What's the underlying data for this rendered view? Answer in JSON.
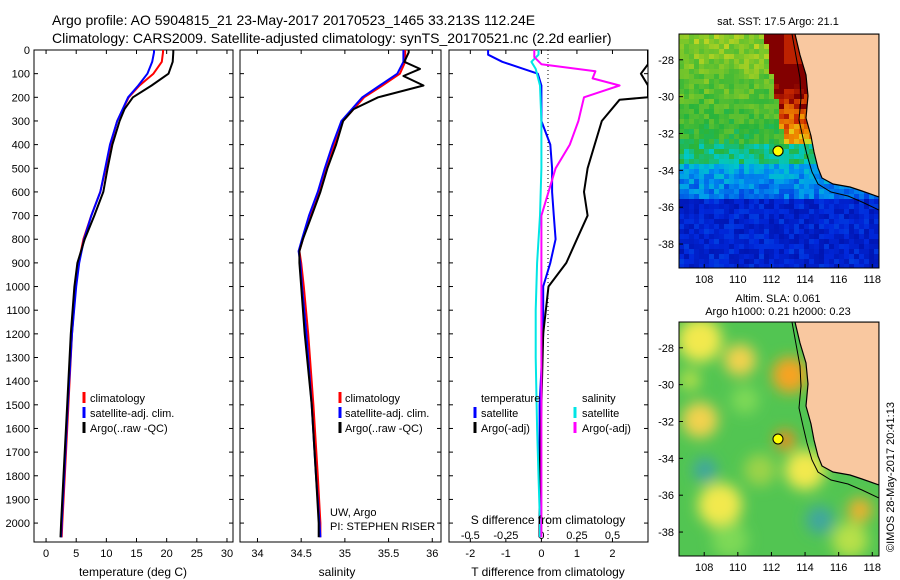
{
  "header": {
    "line1": "Argo profile: AO 5904815_21 23-May-2017 20170523_1465 33.213S 112.24E",
    "line2": "Climatology: CARS2009. Satellite-adjusted climatology: synTS_20170521.nc (2.2d earlier)"
  },
  "colors": {
    "climatology": "#ff0000",
    "satellite": "#0000ff",
    "argo": "#000000",
    "sat_salinity": "#00e5e5",
    "argo_salinity": "#ff00ff",
    "land": "#f9c8a0"
  },
  "chart_data": [
    {
      "type": "line",
      "id": "temperature",
      "xlabel": "temperature (deg C)",
      "xlim": [
        -2,
        31
      ],
      "xticks": [
        0,
        5,
        10,
        15,
        20,
        25,
        30
      ],
      "ylim": [
        2080,
        0
      ],
      "yticks": [
        0,
        100,
        200,
        300,
        400,
        500,
        600,
        700,
        800,
        900,
        1000,
        1100,
        1200,
        1300,
        1400,
        1500,
        1600,
        1700,
        1800,
        1900,
        2000
      ],
      "legend": [
        "climatology",
        "satellite-adj. clim.",
        "Argo(..raw -QC)"
      ],
      "series": [
        {
          "name": "climatology",
          "color": "red",
          "depth": [
            0,
            10,
            50,
            100,
            150,
            200,
            300,
            400,
            500,
            600,
            700,
            800,
            900,
            1000,
            1200,
            1500,
            1800,
            2000,
            2060
          ],
          "values": [
            19.4,
            19.4,
            19.2,
            17.8,
            15.5,
            13.7,
            11.8,
            10.7,
            9.9,
            9.0,
            7.5,
            6.2,
            5.4,
            4.9,
            4.3,
            3.7,
            3.1,
            2.7,
            2.6
          ]
        },
        {
          "name": "satellite-adj. clim.",
          "color": "blue",
          "depth": [
            0,
            10,
            50,
            100,
            150,
            200,
            300,
            400,
            500,
            600,
            700,
            800,
            900,
            1000,
            1200,
            1500,
            1800,
            2000,
            2060
          ],
          "values": [
            17.9,
            17.9,
            17.6,
            16.8,
            15.3,
            13.6,
            11.8,
            10.6,
            9.8,
            9.0,
            7.5,
            6.3,
            5.5,
            5.0,
            4.3,
            3.6,
            3.0,
            2.6,
            2.5
          ]
        },
        {
          "name": "Argo(..raw -QC)",
          "color": "black",
          "depth": [
            0,
            10,
            50,
            100,
            150,
            200,
            250,
            300,
            400,
            500,
            600,
            700,
            800,
            900,
            1000,
            1200,
            1500,
            1800,
            2000,
            2060
          ],
          "values": [
            21.1,
            21.1,
            21.0,
            20.3,
            17.5,
            14.4,
            13.0,
            12.2,
            11.0,
            10.2,
            9.5,
            8.0,
            6.4,
            5.2,
            4.7,
            4.1,
            3.5,
            2.9,
            2.5,
            2.4
          ]
        }
      ]
    },
    {
      "type": "line",
      "id": "salinity",
      "xlabel": "salinity",
      "xlim": [
        33.8,
        36.1
      ],
      "xticks": [
        34,
        34.5,
        35,
        35.5,
        36
      ],
      "ylim": [
        2080,
        0
      ],
      "legend": [
        "climatology",
        "satellite-adj. clim.",
        "Argo(..raw -QC)"
      ],
      "annotations": [
        "UW, Argo",
        "PI: STEPHEN RISER"
      ],
      "series": [
        {
          "name": "climatology",
          "color": "red",
          "depth": [
            0,
            10,
            50,
            100,
            150,
            200,
            300,
            400,
            500,
            600,
            700,
            800,
            850,
            900,
            1000,
            1200,
            1500,
            1800,
            2000,
            2060
          ],
          "values": [
            35.69,
            35.69,
            35.69,
            35.63,
            35.43,
            35.22,
            34.98,
            34.88,
            34.79,
            34.7,
            34.6,
            34.52,
            34.48,
            34.5,
            34.53,
            34.58,
            34.64,
            34.69,
            34.72,
            34.72
          ]
        },
        {
          "name": "satellite-adj. clim.",
          "color": "blue",
          "depth": [
            0,
            10,
            50,
            100,
            150,
            200,
            300,
            400,
            500,
            600,
            700,
            800,
            850,
            900,
            1000,
            1200,
            1500,
            1800,
            2000,
            2060
          ],
          "values": [
            35.67,
            35.67,
            35.67,
            35.6,
            35.4,
            35.2,
            34.96,
            34.86,
            34.77,
            34.69,
            34.59,
            34.51,
            34.47,
            34.49,
            34.51,
            34.56,
            34.62,
            34.67,
            34.71,
            34.72
          ]
        },
        {
          "name": "Argo(..raw -QC)",
          "color": "black",
          "depth": [
            0,
            10,
            50,
            80,
            110,
            150,
            200,
            250,
            300,
            400,
            500,
            600,
            700,
            800,
            850,
            900,
            1000,
            1200,
            1500,
            1800,
            2000,
            2060
          ],
          "values": [
            35.73,
            35.73,
            35.68,
            35.86,
            35.67,
            35.9,
            35.38,
            35.1,
            34.98,
            34.9,
            34.8,
            34.72,
            34.62,
            34.52,
            34.48,
            34.48,
            34.5,
            34.54,
            34.62,
            34.67,
            34.7,
            34.7
          ]
        }
      ]
    },
    {
      "type": "line",
      "id": "difference",
      "xlabel": "T difference from climatology",
      "xlabel2": "S difference from climatology",
      "xlim": [
        -2.6,
        3.0
      ],
      "xticks": [
        -2,
        -1,
        0,
        1,
        2
      ],
      "s_ticks": [
        "-0.5",
        "-0.25",
        "0",
        "0.25",
        "0.5"
      ],
      "legend_title_t": "temperature",
      "legend_title_s": "salinity",
      "legend_t": [
        "satellite",
        "Argo(-adj)"
      ],
      "legend_s": [
        "satellite",
        "Argo(-adj)"
      ],
      "series": [
        {
          "name": "temperature satellite",
          "color": "blue",
          "depth": [
            0,
            20,
            50,
            80,
            100,
            150,
            200,
            300,
            400,
            500,
            600,
            700,
            800,
            900,
            1000,
            1200,
            1500,
            1800,
            2000,
            2060
          ],
          "values": [
            -1.5,
            -1.5,
            -1.1,
            -0.5,
            -0.1,
            0.0,
            0.0,
            0.0,
            0.25,
            0.3,
            0.3,
            0.35,
            0.4,
            0.25,
            0.05,
            0.05,
            -0.05,
            -0.05,
            -0.05,
            -0.05
          ]
        },
        {
          "name": "temperature Argo(-adj)",
          "color": "black",
          "depth": [
            0,
            30,
            60,
            100,
            150,
            200,
            210,
            300,
            400,
            500,
            600,
            700,
            800,
            900,
            1000,
            1200,
            1500,
            1800,
            2000,
            2060
          ],
          "values": [
            3.0,
            3.0,
            3.0,
            2.8,
            3.0,
            3.0,
            2.2,
            1.7,
            1.5,
            1.3,
            1.2,
            1.3,
            1.0,
            0.7,
            0.2,
            0.05,
            0.0,
            -0.05,
            -0.05,
            -0.05
          ]
        },
        {
          "name": "salinity satellite",
          "color": "cyan",
          "depth": [
            0,
            20,
            50,
            80,
            150,
            300,
            500,
            700,
            900,
            1100,
            1300,
            1600,
            1800,
            2000,
            2060
          ],
          "values": [
            -0.02,
            -0.02,
            -0.07,
            -0.04,
            -0.01,
            0.0,
            0.0,
            -0.01,
            -0.03,
            -0.04,
            -0.04,
            -0.03,
            -0.02,
            -0.01,
            -0.01
          ]
        },
        {
          "name": "salinity Argo(-adj)",
          "color": "magenta",
          "depth": [
            0,
            30,
            60,
            90,
            120,
            150,
            180,
            200,
            250,
            300,
            400,
            500,
            600,
            700,
            800,
            900,
            1000,
            1200,
            1500,
            1800,
            2000,
            2060
          ],
          "values": [
            -0.05,
            -0.05,
            0.0,
            0.38,
            0.36,
            0.55,
            0.4,
            0.3,
            0.28,
            0.26,
            0.2,
            0.1,
            0.05,
            0.0,
            0.0,
            0.0,
            0.0,
            0.0,
            0.0,
            0.0,
            0.0,
            0.0
          ]
        }
      ]
    },
    {
      "type": "heatmap",
      "id": "sst-map",
      "title": "sat. SST: 17.5 Argo: 21.1",
      "xticks": [
        "108",
        "110",
        "112",
        "114",
        "116",
        "118"
      ],
      "yticks": [
        "-28",
        "-30",
        "-32",
        "-34",
        "-36",
        "-38"
      ],
      "xlim": [
        106.5,
        118.4
      ],
      "ylim": [
        -39.3,
        -26.6
      ],
      "argo_position": [
        112.24,
        -33.213
      ]
    },
    {
      "type": "heatmap",
      "id": "sla-map",
      "title": "Altim. SLA: 0.061",
      "subtitle": "Argo h1000: 0.21 h2000: 0.23",
      "xticks": [
        "108",
        "110",
        "112",
        "114",
        "116",
        "118"
      ],
      "yticks": [
        "-28",
        "-30",
        "-32",
        "-34",
        "-36",
        "-38"
      ],
      "xlim": [
        106.5,
        118.4
      ],
      "ylim": [
        -39.3,
        -26.6
      ],
      "argo_position": [
        112.24,
        -33.213
      ]
    }
  ],
  "side_label": "©IMOS 28-May-2017 20:41:13"
}
